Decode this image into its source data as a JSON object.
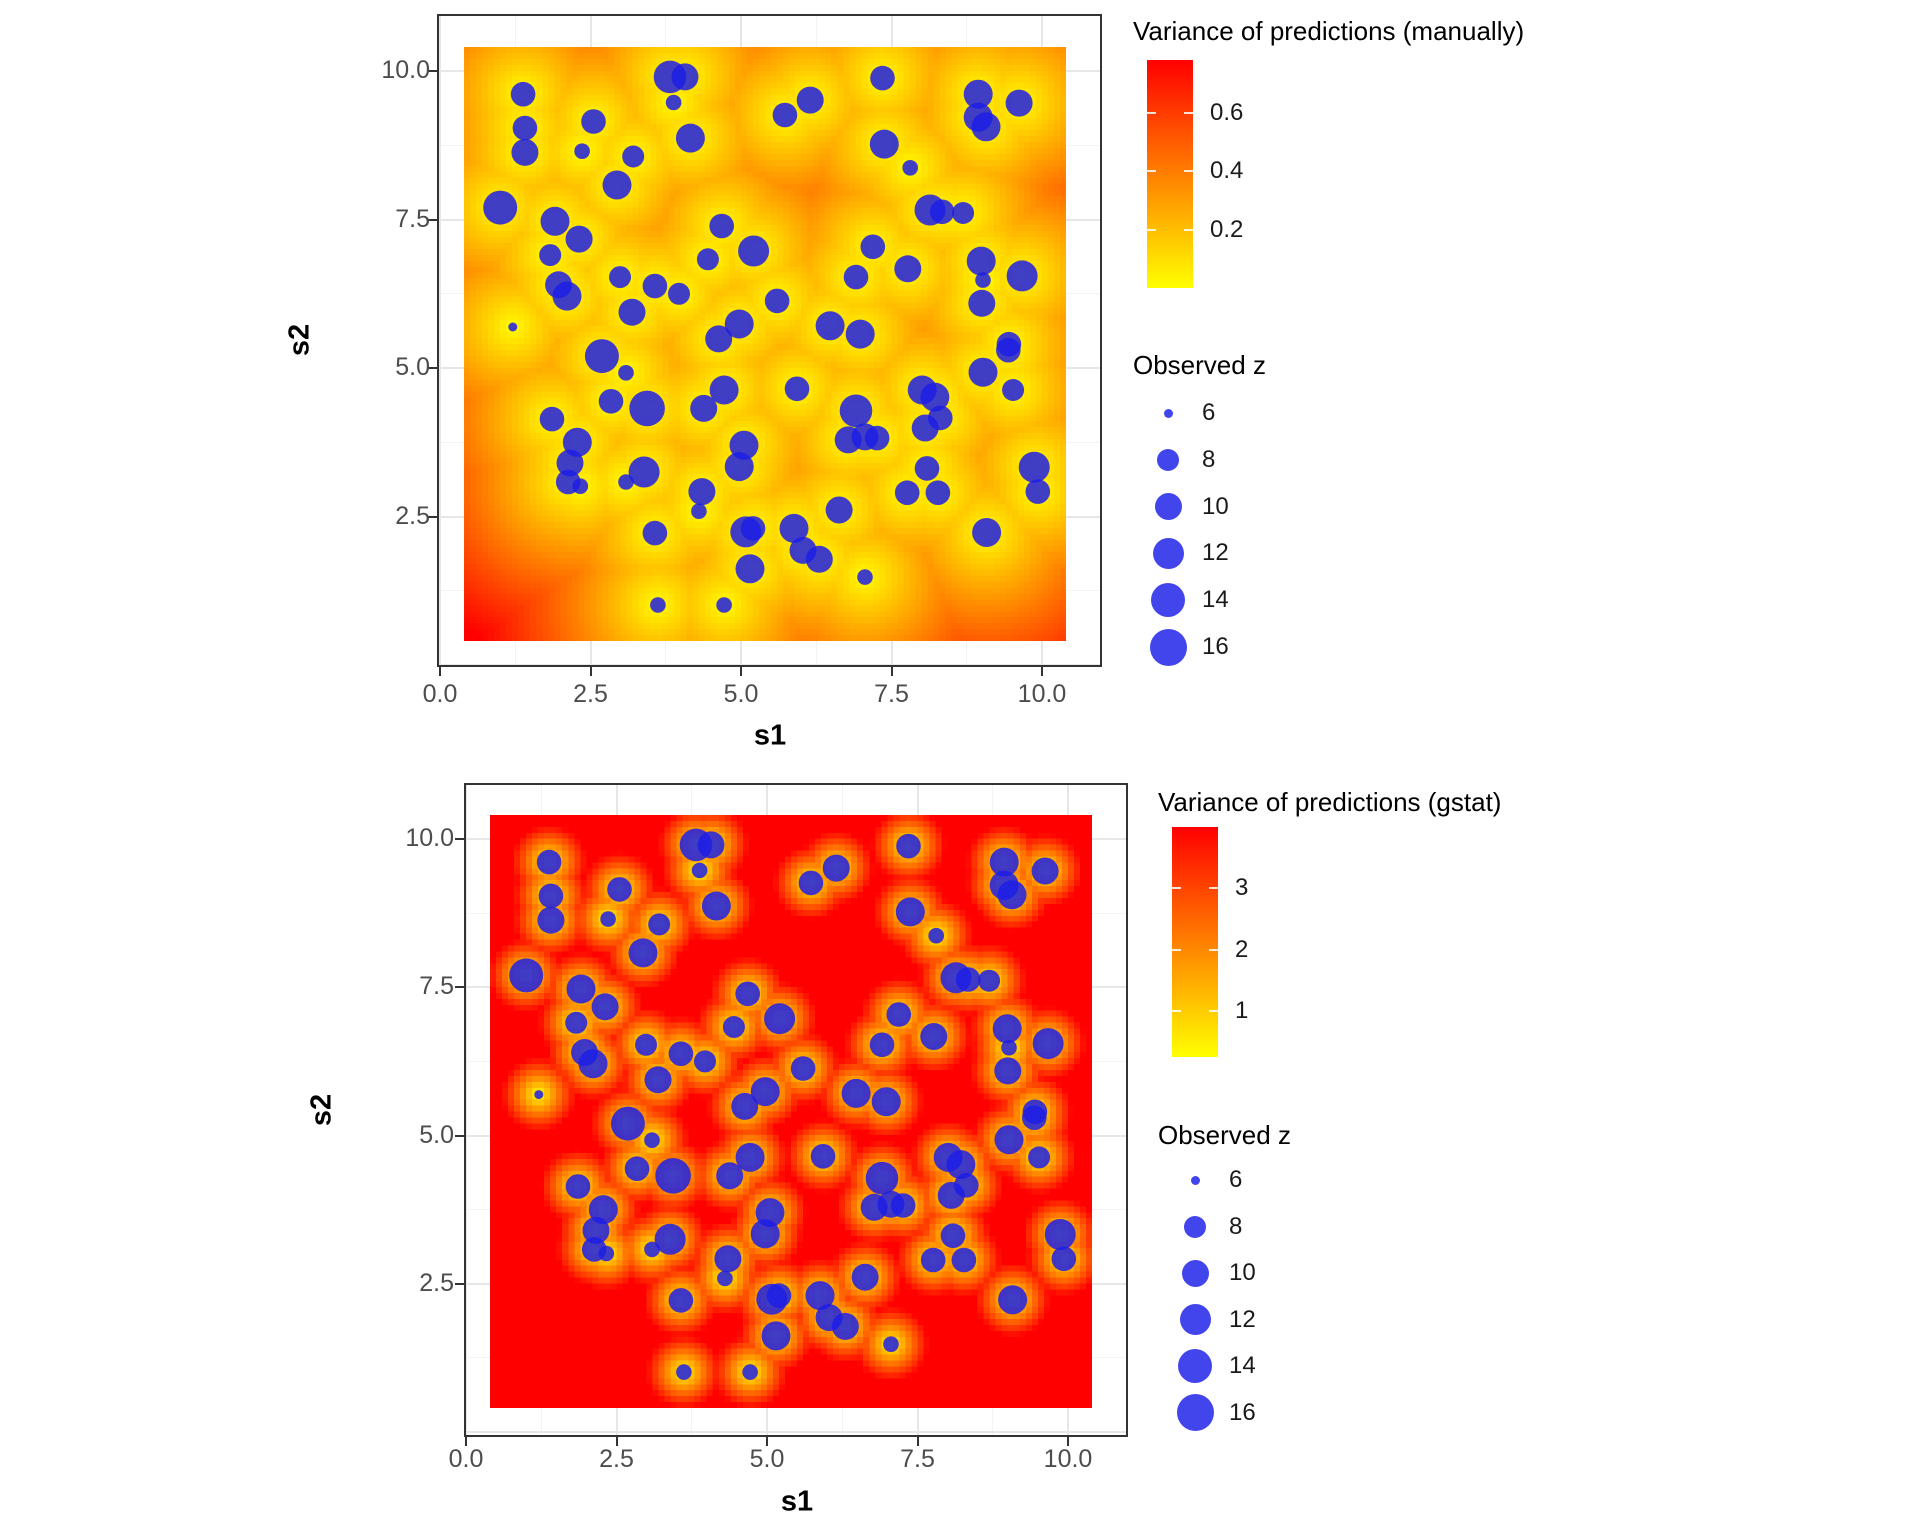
{
  "page": {
    "background": "#FFFFFF"
  },
  "colors": {
    "point_fill": "#1E1EE6",
    "point_opacity": 0.85,
    "legend_point": "#4245EC",
    "low": "#FFFF00",
    "high": "#FF0000",
    "tick_label": "#4D4D4D",
    "panel_border": "#333333"
  },
  "chart_data": [
    {
      "type": "heatmap",
      "subtype": "kriging-variance-raster-with-bubble-overlay",
      "xlabel": "s1",
      "ylabel": "s2",
      "x_tick_labels": [
        "0.0",
        "2.5",
        "5.0",
        "7.5",
        "10.0"
      ],
      "x_tick_values": [
        0,
        2.5,
        5,
        7.5,
        10
      ],
      "y_tick_labels": [
        "10.0",
        "7.5",
        "5.0",
        "2.5"
      ],
      "y_tick_values": [
        10,
        7.5,
        5,
        2.5
      ],
      "xlim": [
        -0.05,
        11.0
      ],
      "ylim": [
        -0.05,
        11.0
      ],
      "raster_extent": [
        0.4,
        10.4
      ],
      "grid": true,
      "legend_position": "right",
      "fill_legend": {
        "title": "Variance of predictions (manually)",
        "bar_range": [
          0,
          0.78
        ],
        "ticks": [
          {
            "value": 0.6,
            "label": "0.6"
          },
          {
            "value": 0.4,
            "label": "0.4"
          },
          {
            "value": 0.2,
            "label": "0.2"
          }
        ],
        "low_color": "#FFFF00",
        "high_color": "#FF0000"
      },
      "size_legend": {
        "title": "Observed z",
        "values": [
          6,
          8,
          10,
          12,
          14,
          16
        ],
        "labels": [
          "6",
          "8",
          "10",
          "12",
          "14",
          "16"
        ]
      },
      "variance_halo": {
        "scale": 3.0,
        "power": 0.9
      }
    },
    {
      "type": "heatmap",
      "subtype": "kriging-variance-raster-with-bubble-overlay",
      "xlabel": "s1",
      "ylabel": "s2",
      "x_tick_labels": [
        "0.0",
        "2.5",
        "5.0",
        "7.5",
        "10.0"
      ],
      "x_tick_values": [
        0,
        2.5,
        5,
        7.5,
        10
      ],
      "y_tick_labels": [
        "10.0",
        "7.5",
        "5.0",
        "2.5"
      ],
      "y_tick_values": [
        10,
        7.5,
        5,
        2.5
      ],
      "xlim": [
        -0.05,
        11.0
      ],
      "ylim": [
        -0.05,
        11.0
      ],
      "raster_extent": [
        0.4,
        10.4
      ],
      "grid": true,
      "legend_position": "right",
      "fill_legend": {
        "title": "Variance of predictions (gstat)",
        "bar_range": [
          0.25,
          4.0
        ],
        "ticks": [
          {
            "value": 3,
            "label": "3"
          },
          {
            "value": 2,
            "label": "2"
          },
          {
            "value": 1,
            "label": "1"
          }
        ],
        "low_color": "#FFFF00",
        "high_color": "#FF0000"
      },
      "size_legend": {
        "title": "Observed z",
        "values": [
          6,
          8,
          10,
          12,
          14,
          16
        ],
        "labels": [
          "6",
          "8",
          "10",
          "12",
          "14",
          "16"
        ]
      },
      "variance_halo": {
        "scale": 0.62,
        "power": 1.0
      }
    }
  ],
  "observations": [
    [
      1.38,
      9.61,
      9
    ],
    [
      1.41,
      9.04,
      9
    ],
    [
      1.41,
      8.63,
      10
    ],
    [
      3.82,
      9.9,
      13
    ],
    [
      4.07,
      9.9,
      10
    ],
    [
      3.88,
      9.47,
      7
    ],
    [
      2.55,
      9.15,
      9
    ],
    [
      2.36,
      8.65,
      7
    ],
    [
      3.21,
      8.56,
      8
    ],
    [
      4.16,
      8.87,
      11
    ],
    [
      2.94,
      8.08,
      11
    ],
    [
      1.0,
      7.7,
      14
    ],
    [
      1.91,
      7.47,
      11
    ],
    [
      2.31,
      7.17,
      10
    ],
    [
      1.83,
      6.9,
      8
    ],
    [
      2.99,
      6.53,
      8
    ],
    [
      3.57,
      6.38,
      9
    ],
    [
      3.97,
      6.25,
      8
    ],
    [
      1.97,
      6.4,
      10
    ],
    [
      2.11,
      6.21,
      11
    ],
    [
      3.19,
      5.94,
      10
    ],
    [
      1.21,
      5.69,
      6
    ],
    [
      4.68,
      7.39,
      9
    ],
    [
      5.21,
      6.97,
      12
    ],
    [
      4.45,
      6.83,
      8
    ],
    [
      4.97,
      5.74,
      11
    ],
    [
      4.63,
      5.49,
      10
    ],
    [
      5.73,
      9.26,
      9
    ],
    [
      6.15,
      9.51,
      10
    ],
    [
      7.35,
      9.88,
      9
    ],
    [
      8.94,
      9.61,
      11
    ],
    [
      8.94,
      9.22,
      11
    ],
    [
      9.07,
      9.06,
      11
    ],
    [
      9.62,
      9.46,
      10
    ],
    [
      7.38,
      8.77,
      11
    ],
    [
      7.81,
      8.37,
      7
    ],
    [
      8.14,
      7.66,
      12
    ],
    [
      8.34,
      7.63,
      9
    ],
    [
      8.69,
      7.61,
      8
    ],
    [
      7.19,
      7.04,
      9
    ],
    [
      7.77,
      6.67,
      10
    ],
    [
      6.91,
      6.53,
      9
    ],
    [
      8.99,
      6.8,
      11
    ],
    [
      9.02,
      6.48,
      7
    ],
    [
      9.67,
      6.55,
      12
    ],
    [
      9.0,
      6.09,
      10
    ],
    [
      5.6,
      6.13,
      9
    ],
    [
      6.48,
      5.71,
      11
    ],
    [
      6.98,
      5.57,
      11
    ],
    [
      9.45,
      5.4,
      9
    ],
    [
      2.69,
      5.2,
      14
    ],
    [
      3.09,
      4.92,
      7
    ],
    [
      2.84,
      4.44,
      9
    ],
    [
      3.44,
      4.32,
      15
    ],
    [
      1.86,
      4.14,
      9
    ],
    [
      2.28,
      3.75,
      11
    ],
    [
      2.16,
      3.4,
      10
    ],
    [
      2.13,
      3.08,
      9
    ],
    [
      2.33,
      3.01,
      7
    ],
    [
      3.39,
      3.25,
      12
    ],
    [
      3.09,
      3.08,
      7
    ],
    [
      4.38,
      4.32,
      10
    ],
    [
      4.72,
      4.63,
      11
    ],
    [
      5.05,
      3.7,
      11
    ],
    [
      4.97,
      3.34,
      11
    ],
    [
      4.35,
      2.92,
      10
    ],
    [
      4.3,
      2.59,
      7
    ],
    [
      3.57,
      2.22,
      9
    ],
    [
      5.08,
      2.24,
      12
    ],
    [
      5.2,
      2.3,
      9
    ],
    [
      5.15,
      1.62,
      11
    ],
    [
      4.72,
      1.01,
      7
    ],
    [
      3.62,
      1.01,
      7
    ],
    [
      5.93,
      4.65,
      9
    ],
    [
      6.91,
      4.28,
      13
    ],
    [
      6.78,
      3.79,
      10
    ],
    [
      7.06,
      3.84,
      10
    ],
    [
      7.26,
      3.82,
      9
    ],
    [
      8.01,
      4.63,
      11
    ],
    [
      8.22,
      4.51,
      11
    ],
    [
      8.31,
      4.16,
      9
    ],
    [
      8.06,
      3.99,
      10
    ],
    [
      9.02,
      4.93,
      11
    ],
    [
      9.44,
      5.3,
      9
    ],
    [
      9.52,
      4.63,
      8
    ],
    [
      9.87,
      3.33,
      12
    ],
    [
      9.93,
      2.92,
      9
    ],
    [
      8.09,
      3.31,
      9
    ],
    [
      7.76,
      2.9,
      9
    ],
    [
      8.27,
      2.9,
      9
    ],
    [
      6.63,
      2.61,
      10
    ],
    [
      5.88,
      2.3,
      11
    ],
    [
      6.03,
      1.93,
      10
    ],
    [
      6.3,
      1.78,
      10
    ],
    [
      7.06,
      1.48,
      7
    ],
    [
      9.08,
      2.23,
      11
    ]
  ]
}
